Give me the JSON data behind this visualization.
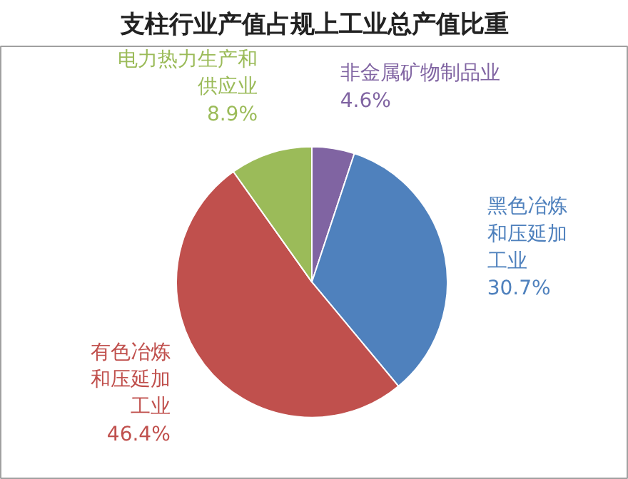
{
  "chart_data": {
    "type": "pie",
    "title": "支柱行业产值占规上工业总产值比重",
    "categories": [
      "非金属矿物制品业",
      "黑色冶炼和压延加工业",
      "有色冶炼和压延加工业",
      "电力热力生产和供应业"
    ],
    "values": [
      4.6,
      30.7,
      46.4,
      8.9
    ],
    "value_labels": [
      "4.6%",
      "30.7%",
      "46.4%",
      "8.9%"
    ],
    "colors": [
      "#8064a2",
      "#4f81bd",
      "#c0504d",
      "#9bbb59"
    ]
  }
}
